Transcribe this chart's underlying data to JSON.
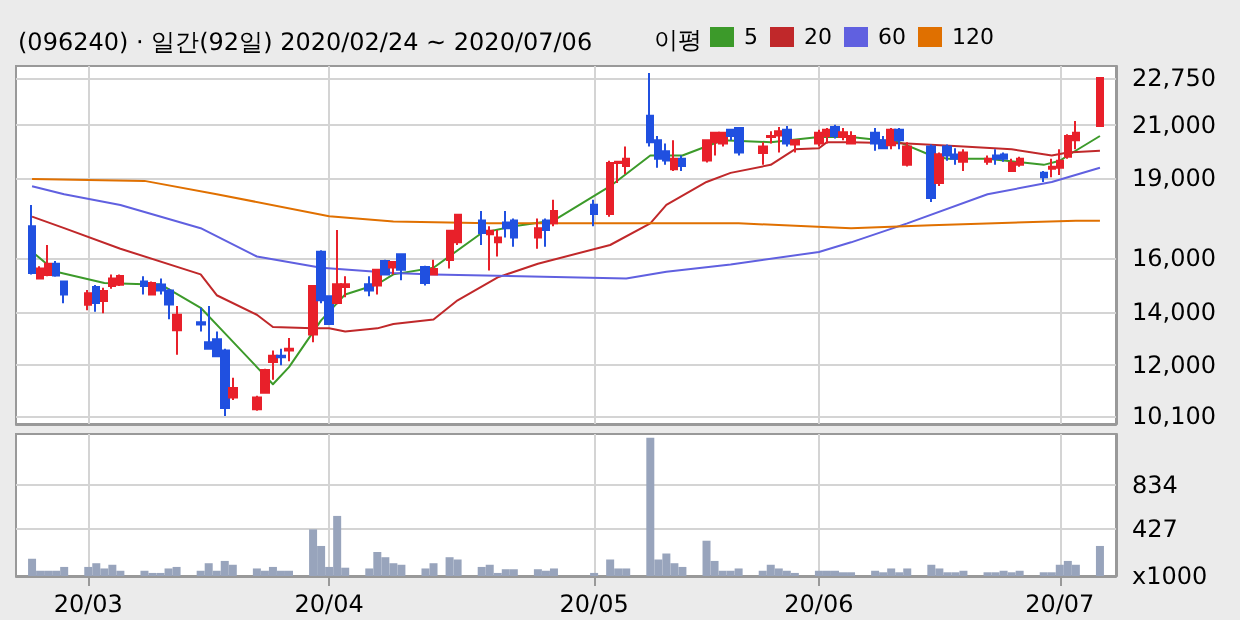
{
  "chart_data": [
    {
      "type": "candlestick",
      "title": "(096240) · 일간(92일) 2020/02/24 ~ 2020/07/06",
      "legend_title": "이평",
      "legend": "top",
      "grid": true,
      "marker": "none",
      "tick_labels": "y",
      "xlim": [
        "2020-02-22",
        "2020-07-08"
      ],
      "xticks": [
        {
          "value": "2020-03-02",
          "label": null
        },
        {
          "value": "2020-04-01",
          "label": null
        },
        {
          "value": "2020-05-04",
          "label": null
        },
        {
          "value": "2020-06-01",
          "label": null
        },
        {
          "value": "2020-07-01",
          "label": null
        }
      ],
      "ylim": [
        9800,
        23200
      ],
      "yticks": [
        {
          "value": 10100,
          "label": "10,100"
        },
        {
          "value": 12000,
          "label": "12,000"
        },
        {
          "value": 14000,
          "label": "14,000"
        },
        {
          "value": 16000,
          "label": "16,000"
        },
        {
          "value": 19000,
          "label": "19,000"
        },
        {
          "value": 21000,
          "label": "21,000"
        },
        {
          "value": 22750,
          "label": "22,750"
        }
      ],
      "x": [
        "2020-02-24",
        "2020-02-25",
        "2020-02-26",
        "2020-02-27",
        "2020-02-28",
        "2020-03-02",
        "2020-03-03",
        "2020-03-04",
        "2020-03-05",
        "2020-03-06",
        "2020-03-09",
        "2020-03-10",
        "2020-03-11",
        "2020-03-12",
        "2020-03-13",
        "2020-03-16",
        "2020-03-17",
        "2020-03-18",
        "2020-03-19",
        "2020-03-20",
        "2020-03-23",
        "2020-03-24",
        "2020-03-25",
        "2020-03-26",
        "2020-03-27",
        "2020-03-30",
        "2020-03-31",
        "2020-04-01",
        "2020-04-02",
        "2020-04-03",
        "2020-04-06",
        "2020-04-07",
        "2020-04-08",
        "2020-04-09",
        "2020-04-10",
        "2020-04-13",
        "2020-04-14",
        "2020-04-16",
        "2020-04-17",
        "2020-04-20",
        "2020-04-21",
        "2020-04-22",
        "2020-04-23",
        "2020-04-24",
        "2020-04-27",
        "2020-04-28",
        "2020-04-29",
        "2020-05-04",
        "2020-05-06",
        "2020-05-07",
        "2020-05-08",
        "2020-05-11",
        "2020-05-12",
        "2020-05-13",
        "2020-05-14",
        "2020-05-15",
        "2020-05-18",
        "2020-05-19",
        "2020-05-20",
        "2020-05-21",
        "2020-05-22",
        "2020-05-25",
        "2020-05-26",
        "2020-05-27",
        "2020-05-28",
        "2020-05-29",
        "2020-06-01",
        "2020-06-02",
        "2020-06-03",
        "2020-06-04",
        "2020-06-05",
        "2020-06-08",
        "2020-06-09",
        "2020-06-10",
        "2020-06-11",
        "2020-06-12",
        "2020-06-15",
        "2020-06-16",
        "2020-06-17",
        "2020-06-18",
        "2020-06-19",
        "2020-06-22",
        "2020-06-23",
        "2020-06-24",
        "2020-06-25",
        "2020-06-26",
        "2020-06-29",
        "2020-06-30",
        "2020-07-01",
        "2020-07-02",
        "2020-07-03",
        "2020-07-06"
      ],
      "series": [
        {
          "ohlc": [
            [
              17200,
              18000,
              15400,
              15450
            ],
            [
              15250,
              15700,
              15230,
              15620
            ],
            [
              15380,
              16500,
              15330,
              15800
            ],
            [
              15800,
              15900,
              15310,
              15360
            ],
            [
              15130,
              15130,
              14320,
              14650
            ],
            [
              14260,
              14820,
              14060,
              14690
            ],
            [
              14930,
              15000,
              14000,
              14330
            ],
            [
              14400,
              14900,
              13950,
              14780
            ],
            [
              14970,
              15400,
              14860,
              15250
            ],
            [
              15010,
              15400,
              14970,
              15340
            ],
            [
              15130,
              15330,
              14650,
              14970
            ],
            [
              14650,
              15130,
              14650,
              15080
            ],
            [
              15020,
              15250,
              14650,
              14800
            ],
            [
              14800,
              14860,
              13720,
              14270
            ],
            [
              13310,
              14220,
              12390,
              13890
            ],
            [
              13610,
              14150,
              13260,
              13520
            ],
            [
              12860,
              14220,
              12620,
              12620
            ],
            [
              12970,
              13260,
              12300,
              12340
            ],
            [
              12550,
              12620,
              10100,
              10400
            ],
            [
              10790,
              11530,
              10700,
              11150
            ],
            [
              10350,
              10860,
              10300,
              10790
            ],
            [
              10970,
              11870,
              10930,
              11820
            ],
            [
              12120,
              12550,
              11460,
              12350
            ],
            [
              12350,
              12620,
              12000,
              12300
            ],
            [
              12550,
              13020,
              12150,
              12620
            ],
            [
              13150,
              14970,
              12860,
              14970
            ],
            [
              16250,
              16300,
              14320,
              14430
            ],
            [
              14580,
              14580,
              13540,
              13540
            ],
            [
              14330,
              17060,
              14280,
              15030
            ],
            [
              14930,
              15330,
              14540,
              15030
            ],
            [
              15030,
              15330,
              14580,
              14800
            ],
            [
              14980,
              15570,
              14650,
              15570
            ],
            [
              15900,
              15950,
              15380,
              15400
            ],
            [
              15660,
              15860,
              15400,
              15860
            ],
            [
              16150,
              16150,
              15180,
              15570
            ],
            [
              15680,
              15720,
              14980,
              15080
            ],
            [
              15400,
              15950,
              15400,
              15600
            ],
            [
              15940,
              17030,
              15620,
              17030
            ],
            [
              16600,
              17630,
              16500,
              17630
            ],
            [
              17420,
              17770,
              16500,
              16950
            ],
            [
              16900,
              17200,
              15550,
              17030
            ],
            [
              16600,
              17060,
              16070,
              16780
            ],
            [
              17340,
              17770,
              16780,
              17130
            ],
            [
              17420,
              17490,
              16430,
              16780
            ],
            [
              16780,
              17490,
              16360,
              17130
            ],
            [
              17420,
              17490,
              16430,
              17060
            ],
            [
              17310,
              18190,
              17200,
              17770
            ],
            [
              18010,
              18190,
              17200,
              17660
            ],
            [
              17660,
              19650,
              17560,
              19570
            ],
            [
              19570,
              19620,
              18820,
              19620
            ],
            [
              19460,
              20190,
              19160,
              19730
            ],
            [
              21340,
              22940,
              20190,
              20350
            ],
            [
              20420,
              20580,
              19390,
              19730
            ],
            [
              20010,
              20300,
              19500,
              19660
            ],
            [
              19340,
              20420,
              19270,
              19730
            ],
            [
              19730,
              19850,
              19270,
              19460
            ],
            [
              19660,
              20420,
              19590,
              20420
            ],
            [
              20350,
              20700,
              19850,
              20700
            ],
            [
              20300,
              20700,
              20190,
              20700
            ],
            [
              20810,
              20810,
              20420,
              20580
            ],
            [
              20880,
              20880,
              19850,
              19960
            ],
            [
              19940,
              20350,
              19500,
              20190
            ],
            [
              20540,
              20760,
              20300,
              20580
            ],
            [
              20600,
              20920,
              19960,
              20760
            ],
            [
              20810,
              20950,
              20190,
              20300
            ],
            [
              20260,
              20420,
              19960,
              20420
            ],
            [
              20300,
              20810,
              20190,
              20700
            ],
            [
              20580,
              20880,
              20300,
              20810
            ],
            [
              20920,
              21000,
              20490,
              20580
            ],
            [
              20540,
              20880,
              20420,
              20720
            ],
            [
              20300,
              20760,
              20300,
              20580
            ],
            [
              20700,
              20880,
              20030,
              20300
            ],
            [
              20420,
              20580,
              20080,
              20120
            ],
            [
              20230,
              20880,
              20080,
              20810
            ],
            [
              20810,
              20880,
              20080,
              20420
            ],
            [
              19500,
              20350,
              19440,
              20190
            ],
            [
              20190,
              20260,
              18110,
              18260
            ],
            [
              18820,
              19960,
              18710,
              19900
            ],
            [
              20190,
              20260,
              19650,
              19850
            ],
            [
              19890,
              20120,
              19500,
              19730
            ],
            [
              19620,
              20080,
              19270,
              19960
            ],
            [
              19620,
              19850,
              19500,
              19730
            ],
            [
              19850,
              20080,
              19500,
              19730
            ],
            [
              19890,
              19960,
              19620,
              19730
            ],
            [
              19270,
              19730,
              19270,
              19580
            ],
            [
              19500,
              19800,
              19430,
              19730
            ],
            [
              19200,
              19270,
              18860,
              19040
            ],
            [
              19350,
              19730,
              19040,
              19430
            ],
            [
              19390,
              20080,
              19120,
              19650
            ],
            [
              19800,
              20650,
              19730,
              20580
            ],
            [
              20420,
              21140,
              20080,
              20700
            ],
            [
              20950,
              22750,
              20950,
              22750
            ]
          ],
          "colors": [
            "#2050e0",
            "#e8202a",
            "#e8202a",
            "#2050e0",
            "#2050e0",
            "#e8202a",
            "#2050e0",
            "#e8202a",
            "#e8202a",
            "#e8202a",
            "#2050e0",
            "#e8202a",
            "#2050e0",
            "#2050e0",
            "#e8202a",
            "#2050e0",
            "#2050e0",
            "#2050e0",
            "#2050e0",
            "#e8202a",
            "#e8202a",
            "#e8202a",
            "#e8202a",
            "#2050e0",
            "#e8202a",
            "#e8202a",
            "#2050e0",
            "#2050e0",
            "#e8202a",
            "#e8202a",
            "#2050e0",
            "#e8202a",
            "#2050e0",
            "#e8202a",
            "#2050e0",
            "#2050e0",
            "#e8202a",
            "#e8202a",
            "#e8202a",
            "#2050e0",
            "#e8202a",
            "#e8202a",
            "#2050e0",
            "#2050e0",
            "#e8202a",
            "#2050e0",
            "#e8202a",
            "#2050e0",
            "#e8202a",
            "#e8202a",
            "#e8202a",
            "#2050e0",
            "#2050e0",
            "#2050e0",
            "#e8202a",
            "#2050e0",
            "#e8202a",
            "#e8202a",
            "#e8202a",
            "#2050e0",
            "#2050e0",
            "#e8202a",
            "#e8202a",
            "#e8202a",
            "#2050e0",
            "#e8202a",
            "#e8202a",
            "#e8202a",
            "#2050e0",
            "#e8202a",
            "#e8202a",
            "#2050e0",
            "#2050e0",
            "#e8202a",
            "#2050e0",
            "#e8202a",
            "#2050e0",
            "#e8202a",
            "#2050e0",
            "#2050e0",
            "#e8202a",
            "#e8202a",
            "#2050e0",
            "#2050e0",
            "#e8202a",
            "#e8202a",
            "#2050e0",
            "#e8202a",
            "#e8202a",
            "#e8202a",
            "#e8202a",
            "#e8202a"
          ]
        },
        {
          "type": "line",
          "name": "5",
          "color": "#3c9a2a",
          "x": [
            "2020-02-24",
            "2020-02-27",
            "2020-03-04",
            "2020-03-09",
            "2020-03-11",
            "2020-03-16",
            "2020-03-19",
            "2020-03-23",
            "2020-03-25",
            "2020-03-27",
            "2020-03-31",
            "2020-04-03",
            "2020-04-07",
            "2020-04-09",
            "2020-04-14",
            "2020-04-20",
            "2020-04-24",
            "2020-04-29",
            "2020-05-06",
            "2020-05-11",
            "2020-05-15",
            "2020-05-20",
            "2020-05-26",
            "2020-06-01",
            "2020-06-05",
            "2020-06-11",
            "2020-06-15",
            "2020-06-17",
            "2020-06-22",
            "2020-06-29",
            "2020-07-01",
            "2020-07-02",
            "2020-07-06"
          ],
          "values": [
            16250,
            15500,
            15080,
            15030,
            15030,
            14150,
            13200,
            11930,
            11290,
            11930,
            13680,
            14650,
            15030,
            15400,
            15650,
            16950,
            17200,
            17420,
            18700,
            19850,
            19850,
            20420,
            20350,
            20540,
            20540,
            20350,
            19850,
            19730,
            19730,
            19500,
            19650,
            19850,
            20580
          ]
        },
        {
          "type": "line",
          "name": "20",
          "color": "#c0282a",
          "x": [
            "2020-02-24",
            "2020-02-28",
            "2020-03-06",
            "2020-03-16",
            "2020-03-18",
            "2020-03-23",
            "2020-03-25",
            "2020-03-30",
            "2020-04-01",
            "2020-04-03",
            "2020-04-07",
            "2020-04-09",
            "2020-04-14",
            "2020-04-17",
            "2020-04-22",
            "2020-04-27",
            "2020-05-06",
            "2020-05-11",
            "2020-05-13",
            "2020-05-18",
            "2020-05-21",
            "2020-05-26",
            "2020-05-29",
            "2020-06-01",
            "2020-06-02",
            "2020-06-05",
            "2020-06-12",
            "2020-06-19",
            "2020-06-25",
            "2020-06-30",
            "2020-07-02",
            "2020-07-06"
          ],
          "values": [
            17560,
            17130,
            16360,
            15400,
            14620,
            13890,
            13430,
            13380,
            13380,
            13260,
            13380,
            13540,
            13710,
            14430,
            15290,
            15800,
            16500,
            17310,
            18000,
            18860,
            19200,
            19500,
            20080,
            20120,
            20350,
            20350,
            20300,
            20190,
            20080,
            19850,
            19960,
            20030
          ]
        },
        {
          "type": "line",
          "name": "60",
          "color": "#6060e0",
          "x": [
            "2020-02-24",
            "2020-02-28",
            "2020-03-06",
            "2020-03-16",
            "2020-03-23",
            "2020-03-31",
            "2020-04-09",
            "2020-04-14",
            "2020-05-08",
            "2020-05-13",
            "2020-05-21",
            "2020-06-01",
            "2020-06-05",
            "2020-06-12",
            "2020-06-22",
            "2020-06-30",
            "2020-07-06"
          ],
          "values": [
            18700,
            18400,
            18000,
            17130,
            16070,
            15650,
            15450,
            15400,
            15250,
            15500,
            15770,
            16240,
            16600,
            17310,
            18400,
            18860,
            19390
          ]
        },
        {
          "type": "line",
          "name": "120",
          "color": "#e07000",
          "x": [
            "2020-02-24",
            "2020-03-09",
            "2020-03-18",
            "2020-04-01",
            "2020-04-09",
            "2020-04-21",
            "2020-04-28",
            "2020-05-22",
            "2020-06-05",
            "2020-06-15",
            "2020-07-03",
            "2020-07-06"
          ],
          "values": [
            18970,
            18900,
            18400,
            17580,
            17380,
            17310,
            17310,
            17310,
            17130,
            17240,
            17410,
            17410
          ]
        }
      ]
    },
    {
      "type": "bar",
      "grid": true,
      "xlim": [
        "2020-02-22",
        "2020-07-08"
      ],
      "xticks": [
        {
          "value": "2020-03-02",
          "label": "20/03"
        },
        {
          "value": "2020-04-01",
          "label": "20/04"
        },
        {
          "value": "2020-05-04",
          "label": "20/05"
        },
        {
          "value": "2020-06-01",
          "label": "20/06"
        },
        {
          "value": "2020-07-01",
          "label": "20/07"
        }
      ],
      "ylim": [
        0,
        1300
      ],
      "yticks": [
        {
          "value": 0,
          "label": "x1000"
        },
        427,
        834
      ],
      "x": [
        "2020-02-24",
        "2020-02-25",
        "2020-02-26",
        "2020-02-27",
        "2020-02-28",
        "2020-03-02",
        "2020-03-03",
        "2020-03-04",
        "2020-03-05",
        "2020-03-06",
        "2020-03-09",
        "2020-03-10",
        "2020-03-11",
        "2020-03-12",
        "2020-03-13",
        "2020-03-16",
        "2020-03-17",
        "2020-03-18",
        "2020-03-19",
        "2020-03-20",
        "2020-03-23",
        "2020-03-24",
        "2020-03-25",
        "2020-03-26",
        "2020-03-27",
        "2020-03-30",
        "2020-03-31",
        "2020-04-01",
        "2020-04-02",
        "2020-04-03",
        "2020-04-06",
        "2020-04-07",
        "2020-04-08",
        "2020-04-09",
        "2020-04-10",
        "2020-04-13",
        "2020-04-14",
        "2020-04-16",
        "2020-04-17",
        "2020-04-20",
        "2020-04-21",
        "2020-04-22",
        "2020-04-23",
        "2020-04-24",
        "2020-04-27",
        "2020-04-28",
        "2020-04-29",
        "2020-05-04",
        "2020-05-06",
        "2020-05-07",
        "2020-05-08",
        "2020-05-11",
        "2020-05-12",
        "2020-05-13",
        "2020-05-14",
        "2020-05-15",
        "2020-05-18",
        "2020-05-19",
        "2020-05-20",
        "2020-05-21",
        "2020-05-22",
        "2020-05-25",
        "2020-05-26",
        "2020-05-27",
        "2020-05-28",
        "2020-05-29",
        "2020-06-01",
        "2020-06-02",
        "2020-06-03",
        "2020-06-04",
        "2020-06-05",
        "2020-06-08",
        "2020-06-09",
        "2020-06-10",
        "2020-06-11",
        "2020-06-12",
        "2020-06-15",
        "2020-06-16",
        "2020-06-17",
        "2020-06-18",
        "2020-06-19",
        "2020-06-22",
        "2020-06-23",
        "2020-06-24",
        "2020-06-25",
        "2020-06-26",
        "2020-06-29",
        "2020-06-30",
        "2020-07-01",
        "2020-07-02",
        "2020-07-03",
        "2020-07-06"
      ],
      "series": [
        {
          "color": "#98a4bc",
          "values": [
            158,
            48,
            48,
            48,
            83,
            83,
            117,
            69,
            103,
            48,
            48,
            28,
            28,
            69,
            83,
            48,
            117,
            48,
            138,
            103,
            69,
            48,
            83,
            48,
            48,
            427,
            275,
            83,
            550,
            76,
            69,
            220,
            172,
            117,
            103,
            69,
            117,
            172,
            151,
            83,
            103,
            28,
            62,
            62,
            62,
            48,
            69,
            28,
            151,
            69,
            69,
            1266,
            151,
            206,
            117,
            83,
            323,
            138,
            48,
            48,
            69,
            48,
            103,
            69,
            48,
            28,
            48,
            48,
            48,
            34,
            34,
            48,
            34,
            69,
            34,
            69,
            103,
            69,
            34,
            34,
            48,
            34,
            34,
            48,
            34,
            48,
            34,
            34,
            103,
            138,
            103,
            275
          ]
        }
      ]
    }
  ]
}
